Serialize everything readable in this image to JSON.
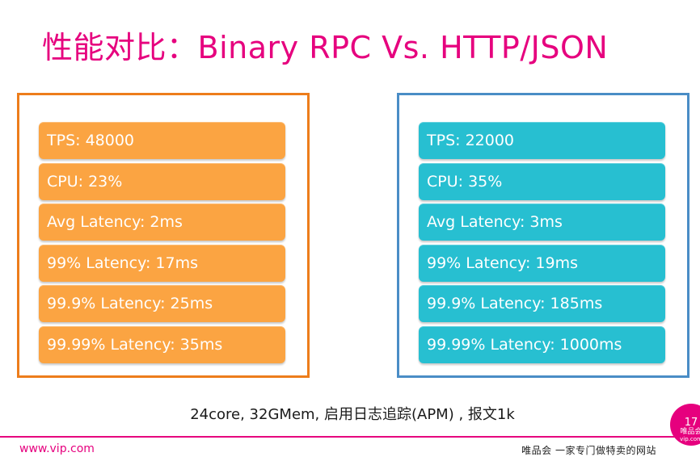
{
  "slide": {
    "title": "性能对比：Binary RPC Vs. HTTP/JSON",
    "left_panel": {
      "items": [
        "TPS: 48000",
        "CPU: 23%",
        "Avg Latency: 2ms",
        "99% Latency: 17ms",
        "99.9% Latency: 25ms",
        "99.99% Latency: 35ms"
      ]
    },
    "right_panel": {
      "items": [
        "TPS: 22000",
        "CPU: 35%",
        "Avg Latency: 3ms",
        "99% Latency: 19ms",
        "99.9% Latency: 185ms",
        "99.99% Latency: 1000ms"
      ]
    },
    "caption": "24core, 32GMem, 启用日志追踪(APM) , 报文1k"
  },
  "footer": {
    "url": "www.vip.com",
    "slogan": "唯品会 一家专门做特卖的网站",
    "page_number": "17",
    "badge_brand": "唯品会",
    "badge_site": "vip.com"
  },
  "colors": {
    "title": "#e6007e",
    "left_border": "#ed7d1b",
    "left_item": "#fba442",
    "right_border": "#4a8dc6",
    "right_item": "#27bfd1"
  }
}
